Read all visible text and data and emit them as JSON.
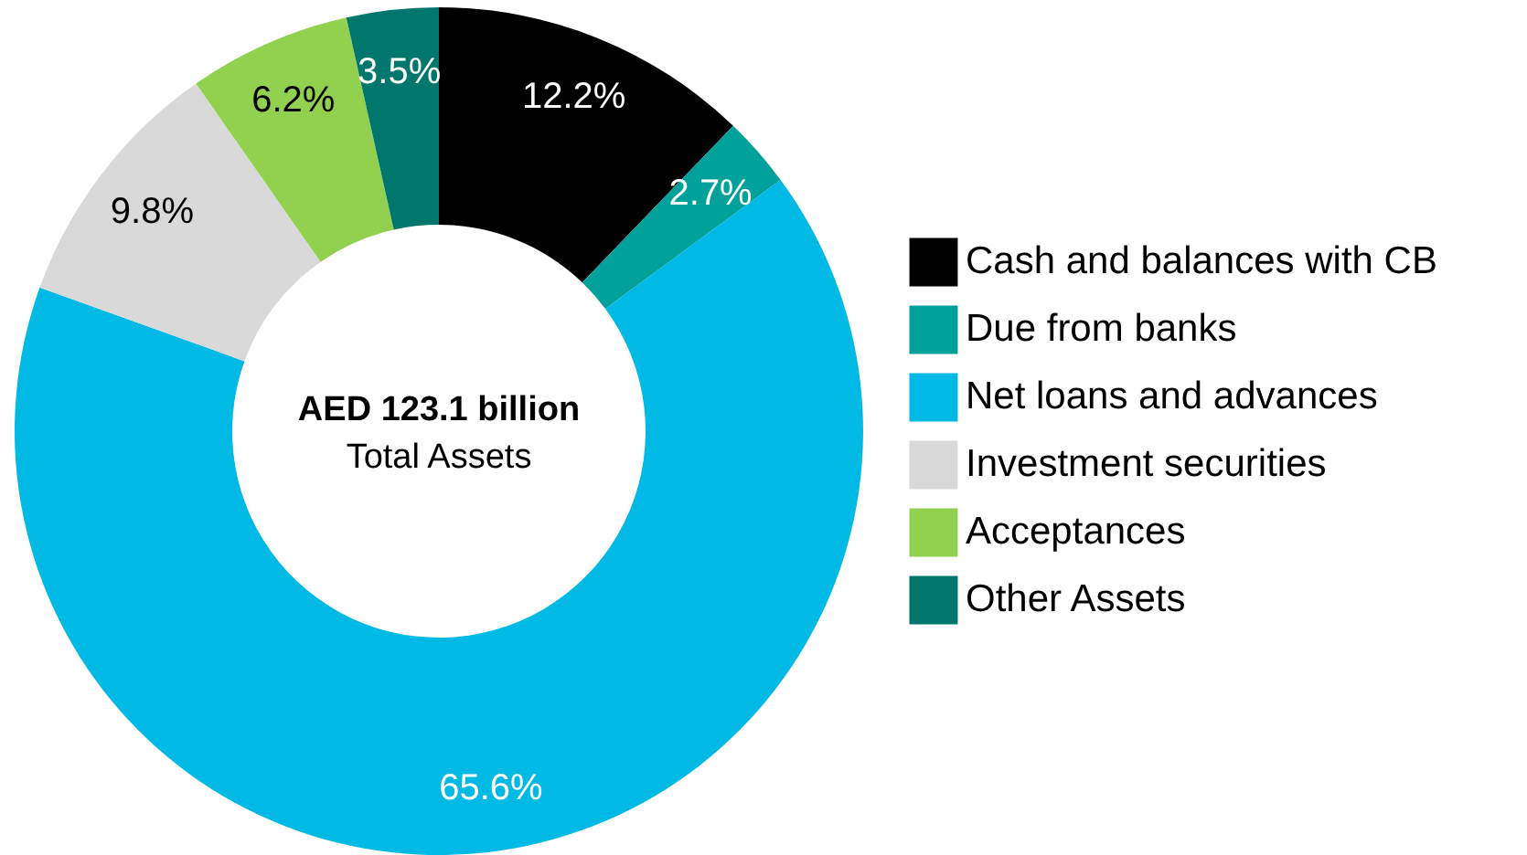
{
  "chart_data": {
    "type": "donut",
    "categories": [
      "Cash and balances with CB",
      "Due from banks",
      "Net loans and advances",
      "Investment securities",
      "Acceptances",
      "Other Assets"
    ],
    "values": [
      12.2,
      2.7,
      65.6,
      9.8,
      6.2,
      3.5
    ],
    "value_labels": [
      "12.2%",
      "2.7%",
      "65.6%",
      "9.8%",
      "6.2%",
      "3.5%"
    ],
    "colors": [
      "#000000",
      "#00a19a",
      "#00b9e4",
      "#d9d9d9",
      "#92d050",
      "#00766c"
    ],
    "annotations": [
      "AED 123.1 billion",
      "Total Assets"
    ],
    "legend": "right"
  }
}
